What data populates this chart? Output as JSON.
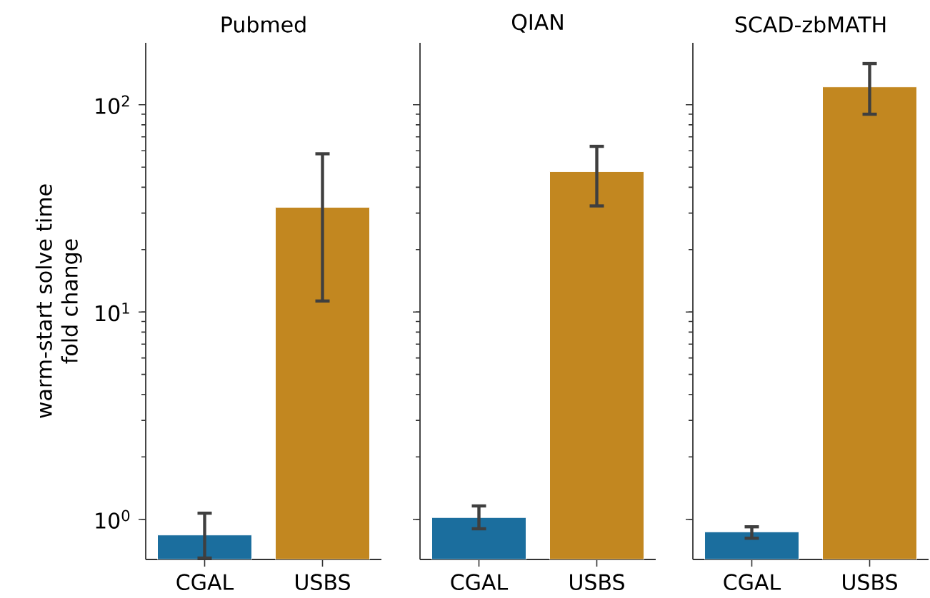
{
  "chart_data": [
    {
      "type": "bar",
      "title": "Pubmed",
      "ylabel": "warm-start solve time\nfold change",
      "categories": [
        "CGAL",
        "USBS"
      ],
      "values": [
        0.84,
        32
      ],
      "colors": [
        "#1b6e9e",
        "#c28720"
      ],
      "errors": [
        [
          0.65,
          1.07
        ],
        [
          11.3,
          58
        ]
      ],
      "log": true,
      "ylim": [
        0.64,
        199
      ],
      "yticks": [
        {
          "value": 1,
          "label": "10$^{0}$"
        },
        {
          "value": 10,
          "label": "10$^{1}$"
        },
        {
          "value": 100,
          "label": "10$^{2}$"
        }
      ]
    },
    {
      "type": "bar",
      "title": "QIAN",
      "categories": [
        "CGAL",
        "USBS"
      ],
      "values": [
        1.02,
        47.6
      ],
      "colors": [
        "#1b6e9e",
        "#c28720"
      ],
      "errors": [
        [
          0.9,
          1.16
        ],
        [
          32.5,
          63
        ]
      ],
      "log": true,
      "ylim": [
        0.64,
        199
      ],
      "yticks": [
        {
          "value": 1,
          "label": null
        },
        {
          "value": 10,
          "label": null
        },
        {
          "value": 100,
          "label": null
        }
      ],
      "tick_labels": "x"
    },
    {
      "type": "bar",
      "title": "SCAD-zbMATH",
      "categories": [
        "CGAL",
        "USBS"
      ],
      "values": [
        0.87,
        122
      ],
      "colors": [
        "#1b6e9e",
        "#c28720"
      ],
      "errors": [
        [
          0.81,
          0.92
        ],
        [
          90,
          158
        ]
      ],
      "log": true,
      "ylim": [
        0.64,
        199
      ],
      "yticks": [
        {
          "value": 1,
          "label": null
        },
        {
          "value": 10,
          "label": null
        },
        {
          "value": 100,
          "label": null
        }
      ],
      "tick_labels": "x"
    }
  ]
}
